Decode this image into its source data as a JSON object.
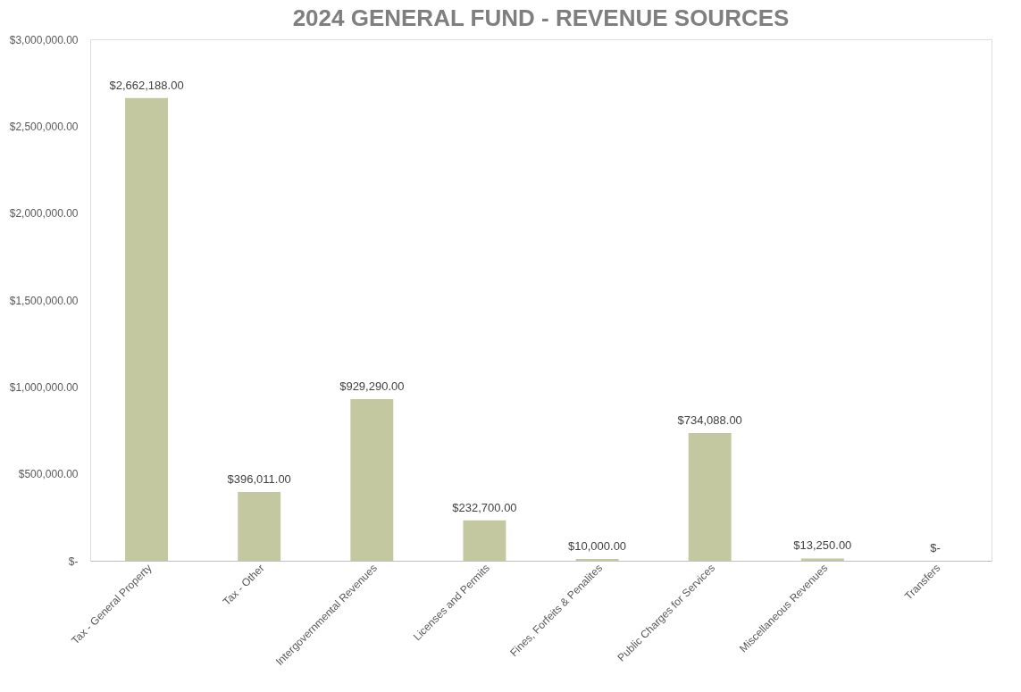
{
  "chart_data": {
    "type": "bar",
    "title": "2024 GENERAL FUND - REVENUE SOURCES",
    "categories": [
      "Tax - General Property",
      "Tax - Other",
      "Intergovernmental Revenues",
      "Licenses and Permits",
      "Fines, Forfeits & Penalites",
      "Public Charges for Services",
      "Miscellaneous Revenues",
      "Transfers"
    ],
    "values": [
      2662188,
      396011,
      929290,
      232700,
      10000,
      734088,
      13250,
      0
    ],
    "value_labels": [
      "$2,662,188.00",
      "$396,011.00",
      "$929,290.00",
      "$232,700.00",
      "$10,000.00",
      "$734,088.00",
      "$13,250.00",
      "$-"
    ],
    "color": "#c3c8a0",
    "ylim": [
      0,
      3000000
    ],
    "yticks": [
      {
        "value": 0,
        "label": "$-"
      },
      {
        "value": 500000,
        "label": "$500,000.00"
      },
      {
        "value": 1000000,
        "label": "$1,000,000.00"
      },
      {
        "value": 1500000,
        "label": "$1,500,000.00"
      },
      {
        "value": 2000000,
        "label": "$2,000,000.00"
      },
      {
        "value": 2500000,
        "label": "$2,500,000.00"
      },
      {
        "value": 3000000,
        "label": "$3,000,000.00"
      }
    ],
    "grid": false
  }
}
